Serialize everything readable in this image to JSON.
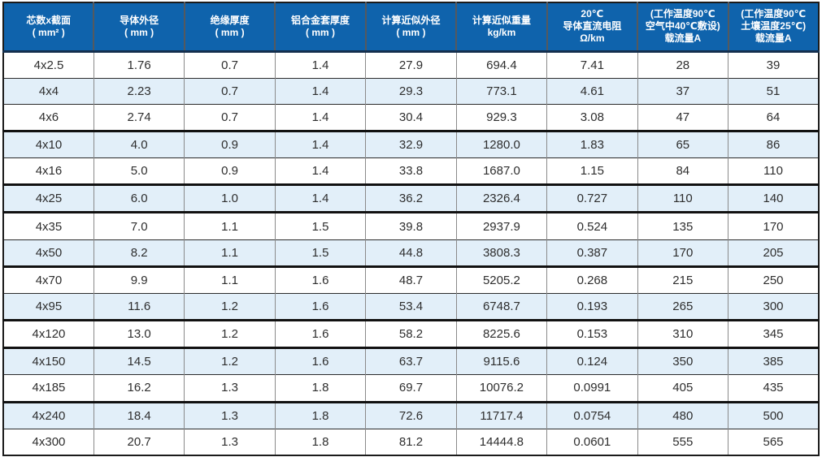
{
  "table": {
    "title_semantic": "aluminum-alloy-cable-4-core-specification-table",
    "colors": {
      "header_bg": "#0f63ac",
      "header_text": "#ffffff",
      "row_bg": "#ffffff",
      "alt_row_bg": "#e2eff9",
      "body_text": "#2e2e2e",
      "grid_vertical": "#8a8a8a",
      "grid_horizontal": "#2b2b2b",
      "grid_thick": "#111111",
      "header_separator": "#55595e",
      "header_bottom_border": "#142f4e"
    },
    "columns": [
      {
        "id": "core-size",
        "lines": [
          "芯数x截面",
          "( mm² )"
        ]
      },
      {
        "id": "conductor-od",
        "lines": [
          "导体外径",
          "( mm )"
        ]
      },
      {
        "id": "insulation",
        "lines": [
          "绝缘厚度",
          "( mm )"
        ]
      },
      {
        "id": "alloy-sheath",
        "lines": [
          "铝合金套厚度",
          "( mm )"
        ]
      },
      {
        "id": "approx-od",
        "lines": [
          "计算近似外径",
          "( mm )"
        ]
      },
      {
        "id": "approx-weight",
        "lines": [
          "计算近似重量",
          "kg/km"
        ]
      },
      {
        "id": "dc-resistance",
        "lines": [
          "20℃",
          "导体直流电阻",
          "Ω/km"
        ]
      },
      {
        "id": "ampacity-air",
        "lines": [
          "(工作温度90℃",
          "空气中40℃敷设)",
          "载流量A"
        ]
      },
      {
        "id": "ampacity-soil",
        "lines": [
          "(工作温度90℃",
          "土壤温度25℃)",
          "载流量A"
        ]
      }
    ],
    "rows": [
      [
        "4x2.5",
        "1.76",
        "0.7",
        "1.4",
        "27.9",
        "694.4",
        "7.41",
        "28",
        "39"
      ],
      [
        "4x4",
        "2.23",
        "0.7",
        "1.4",
        "29.3",
        "773.1",
        "4.61",
        "37",
        "51"
      ],
      [
        "4x6",
        "2.74",
        "0.7",
        "1.4",
        "30.4",
        "929.3",
        "3.08",
        "47",
        "64"
      ],
      [
        "4x10",
        "4.0",
        "0.9",
        "1.4",
        "32.9",
        "1280.0",
        "1.83",
        "65",
        "86"
      ],
      [
        "4x16",
        "5.0",
        "0.9",
        "1.4",
        "33.8",
        "1687.0",
        "1.15",
        "84",
        "110"
      ],
      [
        "4x25",
        "6.0",
        "1.0",
        "1.4",
        "36.2",
        "2326.4",
        "0.727",
        "110",
        "140"
      ],
      [
        "4x35",
        "7.0",
        "1.1",
        "1.5",
        "39.8",
        "2937.9",
        "0.524",
        "135",
        "170"
      ],
      [
        "4x50",
        "8.2",
        "1.1",
        "1.5",
        "44.8",
        "3808.3",
        "0.387",
        "170",
        "205"
      ],
      [
        "4x70",
        "9.9",
        "1.1",
        "1.6",
        "48.7",
        "5205.2",
        "0.268",
        "215",
        "250"
      ],
      [
        "4x95",
        "11.6",
        "1.2",
        "1.6",
        "53.4",
        "6748.7",
        "0.193",
        "265",
        "300"
      ],
      [
        "4x120",
        "13.0",
        "1.2",
        "1.6",
        "58.2",
        "8225.6",
        "0.153",
        "310",
        "345"
      ],
      [
        "4x150",
        "14.5",
        "1.2",
        "1.6",
        "63.7",
        "9115.6",
        "0.124",
        "350",
        "385"
      ],
      [
        "4x185",
        "16.2",
        "1.3",
        "1.8",
        "69.7",
        "10076.2",
        "0.0991",
        "405",
        "435"
      ],
      [
        "4x240",
        "18.4",
        "1.3",
        "1.8",
        "72.6",
        "11717.4",
        "0.0754",
        "480",
        "500"
      ],
      [
        "4x300",
        "20.7",
        "1.3",
        "1.8",
        "81.2",
        "14444.8",
        "0.0601",
        "555",
        "565"
      ]
    ],
    "thick_top_border_rows": [
      3,
      5,
      6,
      8,
      10,
      11,
      13
    ]
  }
}
